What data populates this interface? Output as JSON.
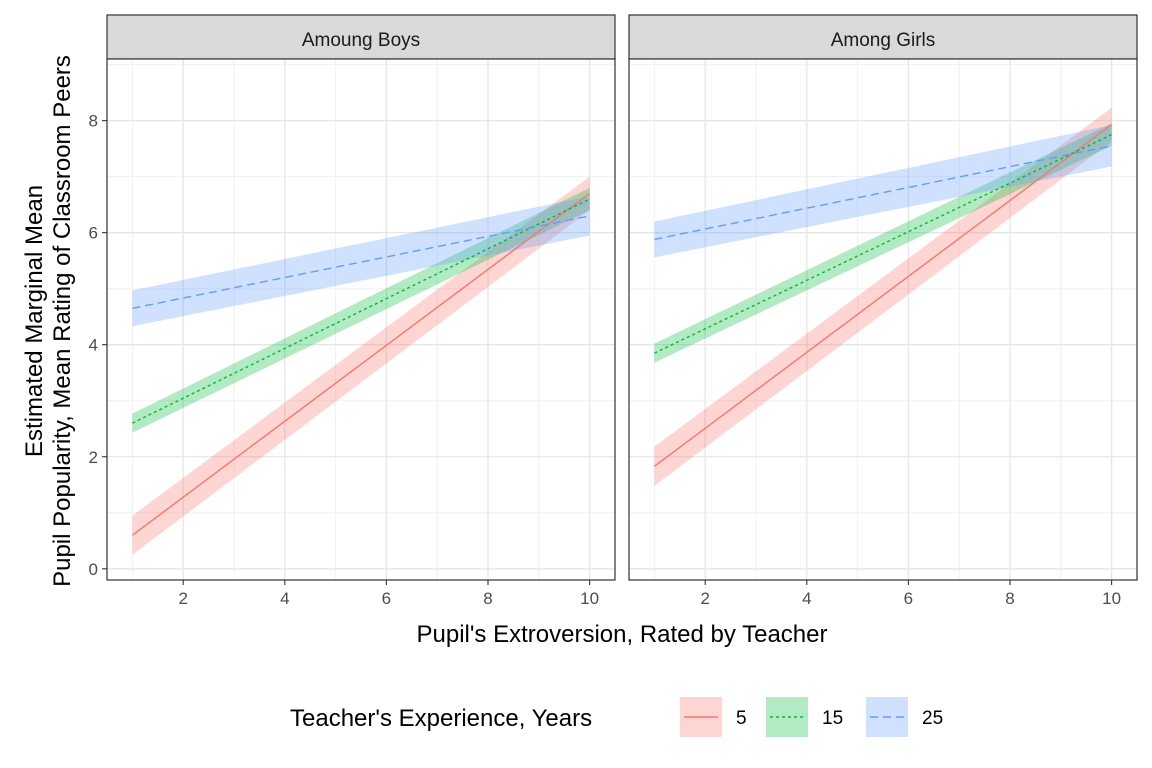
{
  "chart_data": {
    "type": "line",
    "xlabel": "Pupil's Extroversion, Rated by Teacher",
    "ylabel_line1": "Estimated Marginal Mean",
    "ylabel_line2": "Pupil Popularity, Mean Rating of Classroom Peers",
    "xlim": [
      0.5,
      10.5
    ],
    "ylim": [
      -0.2,
      9.1
    ],
    "x_ticks": [
      2,
      4,
      6,
      8,
      10
    ],
    "y_ticks": [
      0,
      2,
      4,
      6,
      8
    ],
    "grid": true,
    "legend": {
      "title": "Teacher's Experience, Years",
      "position": "bottom",
      "entries": [
        "5",
        "15",
        "25"
      ]
    },
    "series_styles": [
      {
        "name": "5",
        "color": "#F8766D",
        "fill": "#F8766D",
        "dash": "none"
      },
      {
        "name": "15",
        "color": "#00BA38",
        "fill": "#00BA38",
        "dash": "3,3"
      },
      {
        "name": "25",
        "color": "#619CFF",
        "fill": "#619CFF",
        "dash": "8,5"
      }
    ],
    "panels": [
      {
        "title": "Amoung Boys",
        "series": [
          {
            "name": "5",
            "x": [
              1,
              10
            ],
            "y": [
              0.6,
              6.7
            ],
            "lower": [
              0.25,
              6.4
            ],
            "upper": [
              0.95,
              7.0
            ]
          },
          {
            "name": "15",
            "x": [
              1,
              10
            ],
            "y": [
              2.6,
              6.6
            ],
            "lower": [
              2.43,
              6.4
            ],
            "upper": [
              2.77,
              6.8
            ]
          },
          {
            "name": "25",
            "x": [
              1,
              10
            ],
            "y": [
              4.65,
              6.3
            ],
            "lower": [
              4.33,
              5.95
            ],
            "upper": [
              4.97,
              6.65
            ]
          }
        ]
      },
      {
        "title": "Among Girls",
        "series": [
          {
            "name": "5",
            "x": [
              1,
              10
            ],
            "y": [
              1.83,
              7.93
            ],
            "lower": [
              1.48,
              7.63
            ],
            "upper": [
              2.18,
              8.23
            ]
          },
          {
            "name": "15",
            "x": [
              1,
              10
            ],
            "y": [
              3.85,
              7.75
            ],
            "lower": [
              3.68,
              7.55
            ],
            "upper": [
              4.02,
              7.95
            ]
          },
          {
            "name": "25",
            "x": [
              1,
              10
            ],
            "y": [
              5.88,
              7.55
            ],
            "lower": [
              5.56,
              7.18
            ],
            "upper": [
              6.2,
              7.92
            ]
          }
        ]
      }
    ]
  }
}
